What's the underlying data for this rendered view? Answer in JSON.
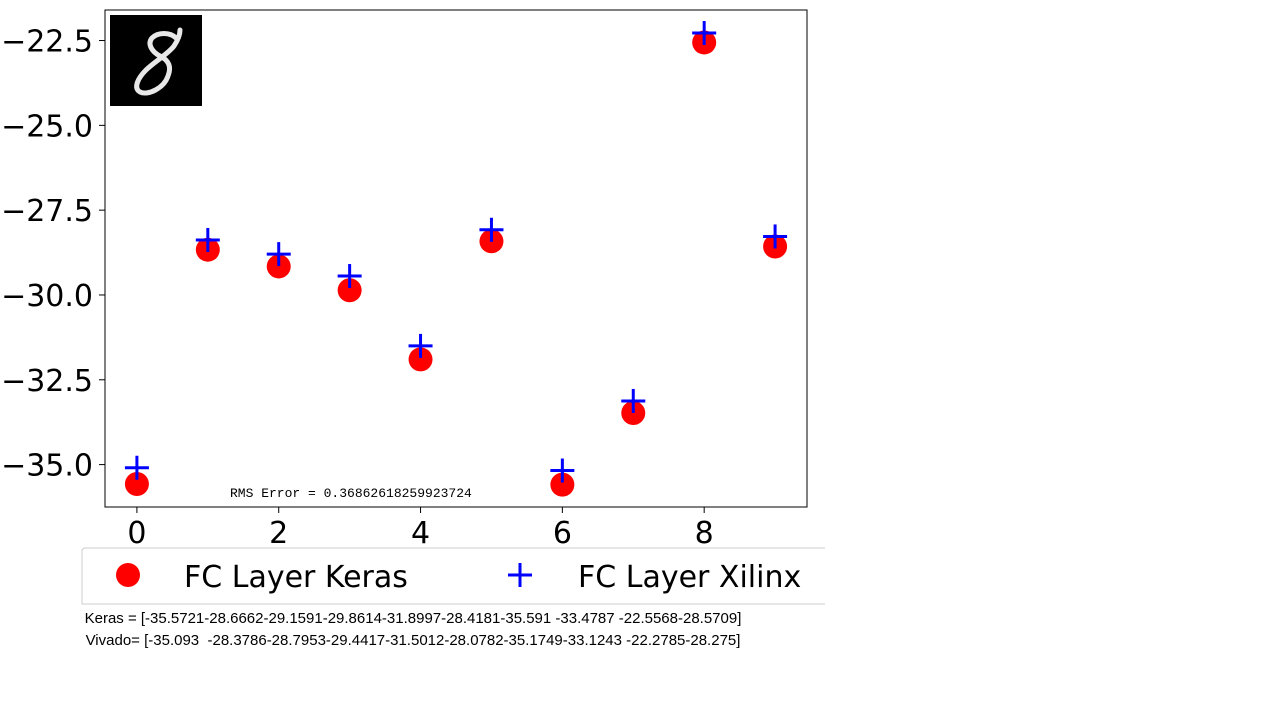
{
  "chart_data": {
    "type": "scatter",
    "x": [
      0,
      1,
      2,
      3,
      4,
      5,
      6,
      7,
      8,
      9
    ],
    "series": [
      {
        "name": "FC Layer Keras",
        "marker": "circle",
        "color": "#ff0000",
        "values": [
          -35.5721,
          -28.6662,
          -29.1591,
          -29.8614,
          -31.8997,
          -28.4181,
          -35.591,
          -33.4787,
          -22.5568,
          -28.5709
        ]
      },
      {
        "name": "FC Layer Xilinx",
        "marker": "plus",
        "color": "#0000ff",
        "values": [
          -35.093,
          -28.3786,
          -28.7953,
          -29.4417,
          -31.5012,
          -28.0782,
          -35.1749,
          -33.1243,
          -22.2785,
          -28.275
        ]
      }
    ],
    "xlim": [
      -0.45,
      9.45
    ],
    "ylim": [
      -36.25,
      -21.6
    ],
    "xticks": [
      0,
      2,
      4,
      6,
      8
    ],
    "xtick_labels": [
      "0",
      "2",
      "4",
      "6",
      "8"
    ],
    "yticks": [
      -22.5,
      -25,
      -27.5,
      -30,
      -32.5,
      -35
    ],
    "ytick_labels": [
      "−22.5",
      "−25.0",
      "−27.5",
      "−30.0",
      "−32.5",
      "−35.0"
    ],
    "annotation": "RMS Error = 0.36862618259923724",
    "legend_placement": "bottom",
    "grid": false,
    "inset_image": "handwritten-digit-8"
  },
  "caption": {
    "keras_line": "Keras = [-35.5721-28.6662-29.1591-29.8614-31.8997-28.4181-35.591 -33.4787 -22.5568-28.5709]",
    "vivado_line": "Vivado= [-35.093  -28.3786-28.7953-29.4417-31.5012-28.0782-35.1749-33.1243 -22.2785-28.275]"
  }
}
